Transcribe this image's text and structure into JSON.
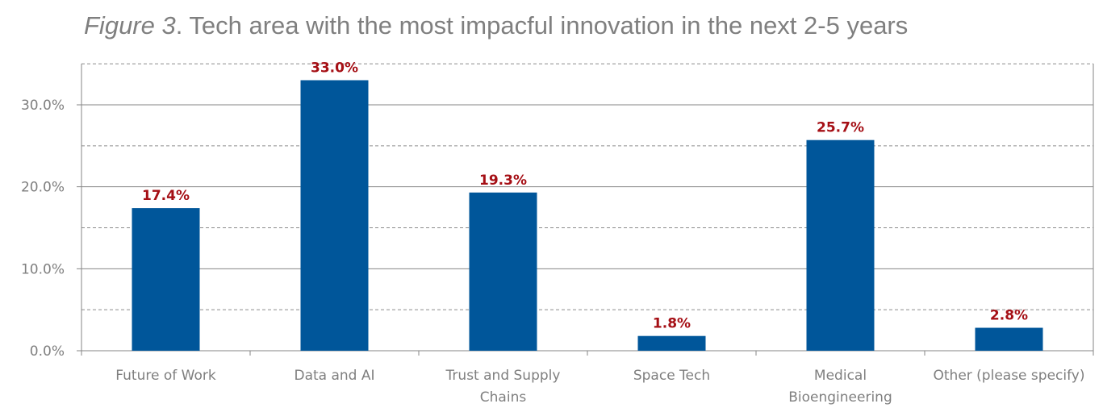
{
  "chart_data": {
    "type": "bar",
    "title_prefix": "Figure 3",
    "title_rest": ". Tech area with the most impacful innovation in the next 2-5 years",
    "categories": [
      "Future of Work",
      "Data and AI",
      "Trust and Supply Chains",
      "Space Tech",
      "Medical Bioengineering",
      "Other (please specify)"
    ],
    "category_lines": [
      [
        "Future of Work"
      ],
      [
        "Data and AI"
      ],
      [
        "Trust and Supply",
        "Chains"
      ],
      [
        "Space Tech"
      ],
      [
        "Medical",
        "Bioengineering"
      ],
      [
        "Other (please specify)"
      ]
    ],
    "values": [
      17.4,
      33.0,
      19.3,
      1.8,
      25.7,
      2.8
    ],
    "data_labels": [
      "17.4%",
      "33.0%",
      "19.3%",
      "1.8%",
      "25.7%",
      "2.8%"
    ],
    "yticks": [
      0,
      10,
      20,
      30
    ],
    "ytick_labels": [
      "0.0%",
      "10.0%",
      "20.0%",
      "30.0%"
    ],
    "ylim": [
      0,
      35
    ],
    "xlabel": "",
    "ylabel": "",
    "grid": "major solid, minor dashed",
    "bar_color": "#00569a",
    "label_color": "#a50f15"
  }
}
